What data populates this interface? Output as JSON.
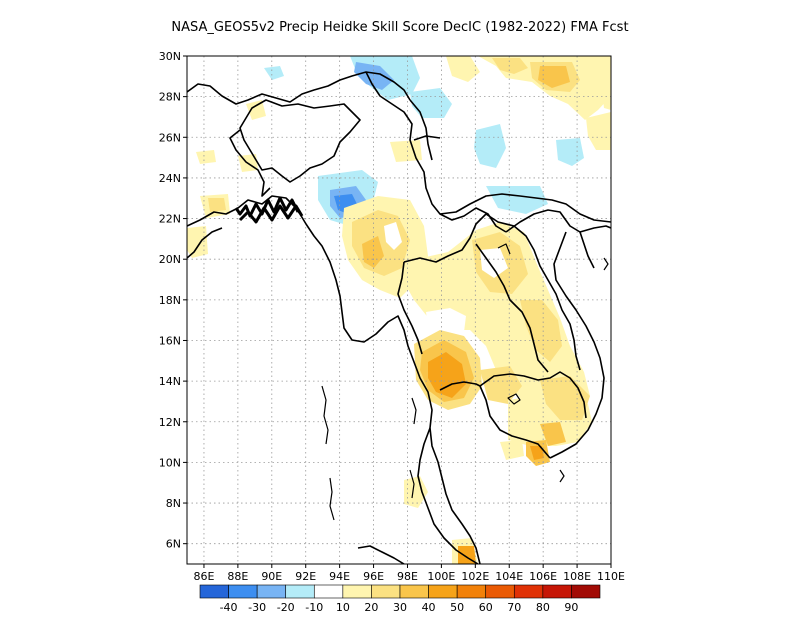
{
  "title": "NASA_GEOS5v2 Precip Heidke Skill Score DecIC (1982-2022) FMA Fcst",
  "lat_labels": [
    "30N",
    "28N",
    "26N",
    "24N",
    "22N",
    "20N",
    "18N",
    "16N",
    "14N",
    "12N",
    "10N",
    "8N",
    "6N"
  ],
  "lon_labels": [
    "86E",
    "88E",
    "90E",
    "92E",
    "94E",
    "96E",
    "98E",
    "100E",
    "102E",
    "104E",
    "106E",
    "108E",
    "110E"
  ],
  "colorbar": {
    "colors": [
      "#2566d9",
      "#3d8ef0",
      "#78b4f4",
      "#b4ecf8",
      "#ffffff",
      "#fff5b0",
      "#fbe182",
      "#f9c54b",
      "#f6a319",
      "#f28109",
      "#ea5a04",
      "#e03105",
      "#c61606",
      "#a20b05"
    ],
    "labels": [
      "-40",
      "-30",
      "-20",
      "-10",
      "10",
      "20",
      "30",
      "40",
      "50",
      "60",
      "70",
      "80",
      "90"
    ]
  },
  "map": {
    "lon_range": [
      85,
      110
    ],
    "lat_range": [
      5,
      30
    ],
    "grid": true,
    "land_outline_color": "#000000"
  }
}
